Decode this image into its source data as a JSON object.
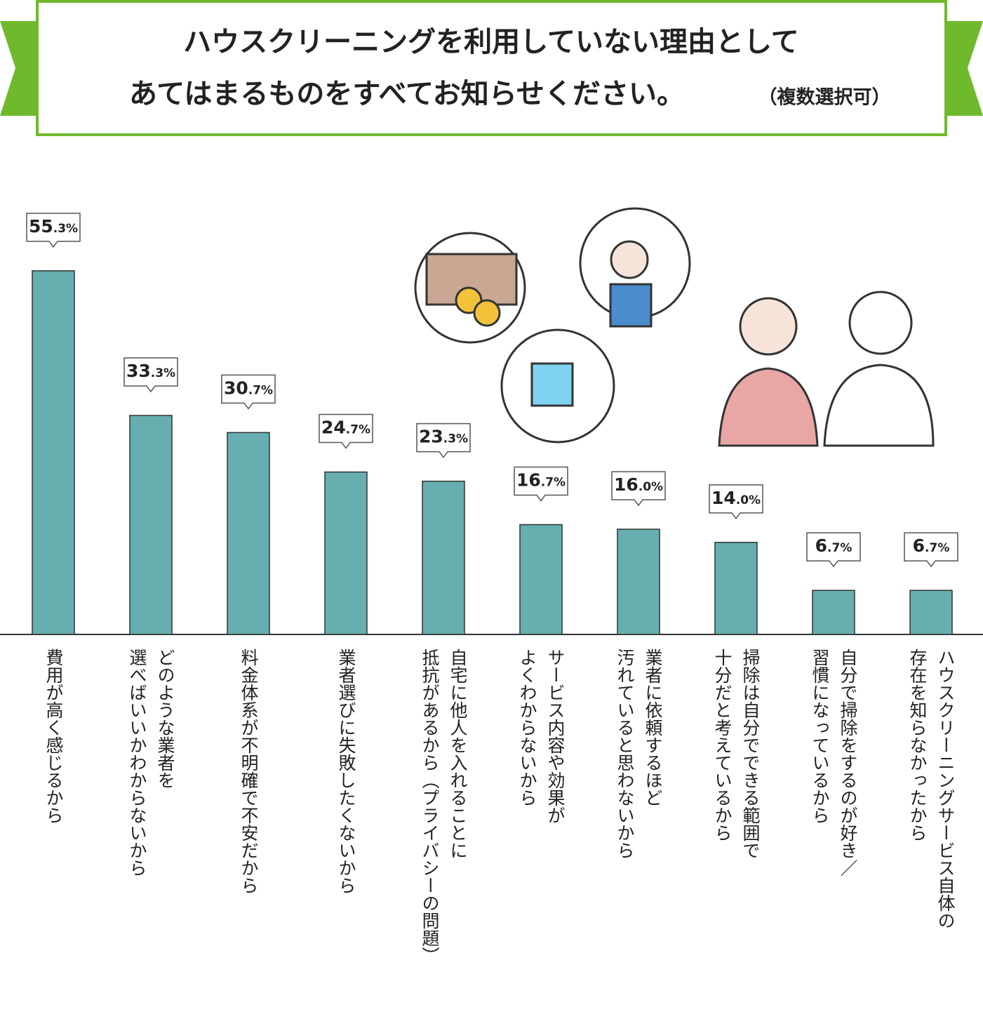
{
  "chart_data": {
    "type": "bar",
    "title": "ハウスクリーニングを利用していない理由として",
    "subtitle": "あてはまるものをすべてお知らせください。",
    "note": "（複数選択可）",
    "categories": [
      "費用が高く感じるから",
      "どのような業者を\n選べばいいかわからないから",
      "料金体系が不明確で不安だから",
      "業者選びに失敗したくないから",
      "自宅に他人を入れることに\n抵抗があるから（プライバシーの問題）",
      "サービス内容や効果が\nよくわからないから",
      "業者に依頼するほど\n汚れていると思わないから",
      "掃除は自分でできる範囲で\n十分だと考えているから",
      "自分で掃除をするのが好き／\n習慣になっているから",
      "ハウスクリーニングサービス自体の\n存在を知らなかったから"
    ],
    "values": [
      55.3,
      33.3,
      30.7,
      24.7,
      23.3,
      16.7,
      16.0,
      14.0,
      6.7,
      6.7
    ],
    "value_labels": [
      "55.3%",
      "33.3%",
      "30.7%",
      "24.7%",
      "23.3%",
      "16.7%",
      "16.0%",
      "14.0%",
      "6.7%",
      "6.7%"
    ],
    "color": "#66aeaf"
  }
}
